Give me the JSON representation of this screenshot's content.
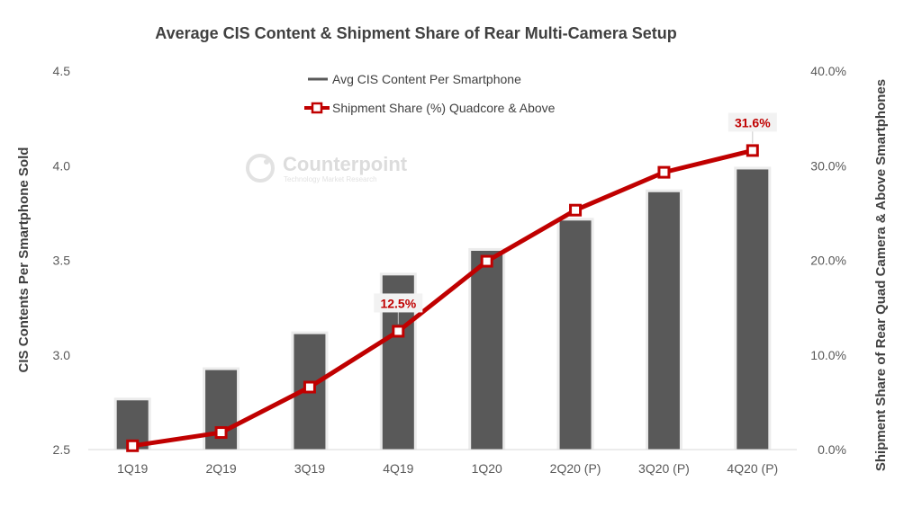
{
  "chart_data": {
    "type": "bar",
    "title": "Average CIS Content & Shipment Share of Rear Multi-Camera Setup",
    "categories": [
      "1Q19",
      "2Q19",
      "3Q19",
      "4Q19",
      "1Q20",
      "2Q20 (P)",
      "3Q20 (P)",
      "4Q20 (P)"
    ],
    "series": [
      {
        "name": "Avg CIS Content Per Smartphone",
        "type": "bar",
        "axis": "left",
        "color": "#595959",
        "values": [
          2.76,
          2.92,
          3.11,
          3.42,
          3.55,
          3.71,
          3.86,
          3.98
        ]
      },
      {
        "name": "Shipment Share (%) Quadcore & Above",
        "type": "line",
        "axis": "right",
        "color": "#C00000",
        "values": [
          0.4,
          1.8,
          6.6,
          12.5,
          19.9,
          25.3,
          29.3,
          31.6
        ]
      }
    ],
    "y_left": {
      "label": "CIS Contents Per Smartphone Sold",
      "ylim": [
        2.5,
        4.5
      ],
      "ticks": [
        "2.5",
        "3.0",
        "3.5",
        "4.0",
        "4.5"
      ]
    },
    "y_right": {
      "label": "Shipment Share of Rear Quad Camera  & Above Smartphones",
      "ylim": [
        0,
        40
      ],
      "ticks": [
        "0.0%",
        "10.0%",
        "20.0%",
        "30.0%",
        "40.0%"
      ]
    },
    "data_labels": [
      {
        "index": 3,
        "text": "12.5%"
      },
      {
        "index": 7,
        "text": "31.6%"
      }
    ],
    "legend_position": "top-center",
    "grid": false
  },
  "watermark": {
    "name": "Counterpoint",
    "tagline": "Technology Market Research"
  }
}
